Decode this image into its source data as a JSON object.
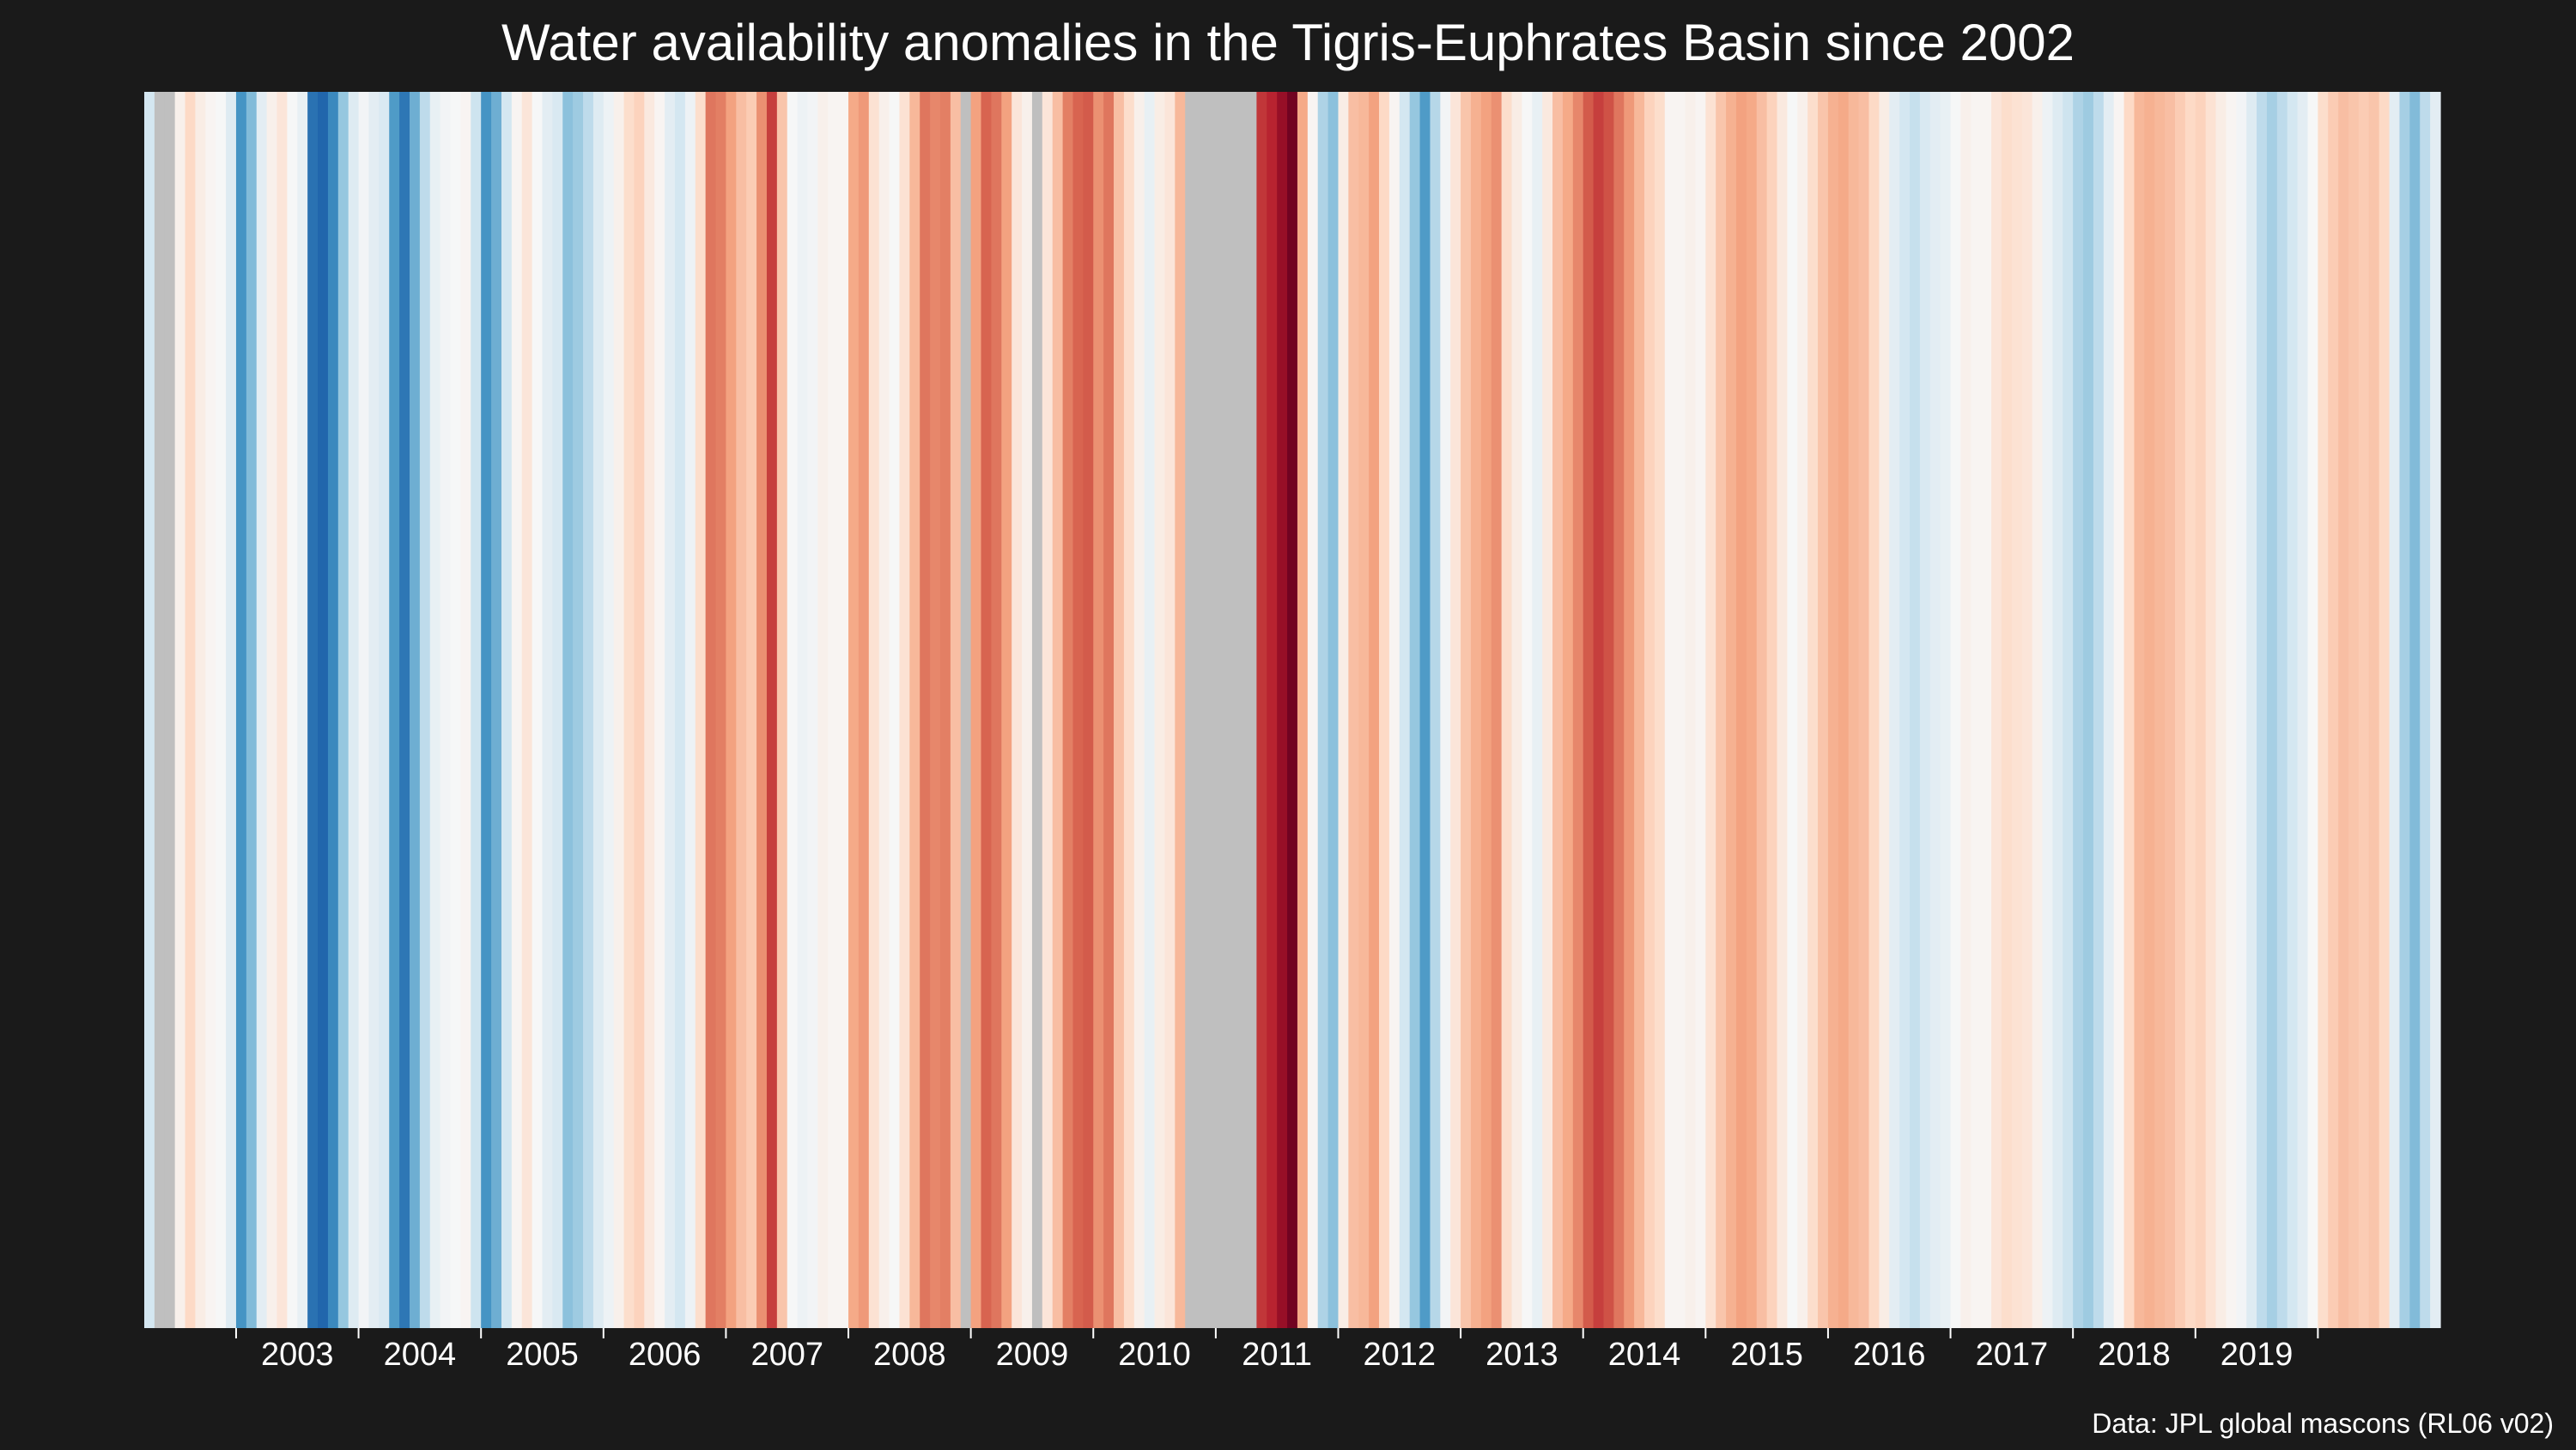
{
  "chart_data": {
    "type": "heatmap",
    "title": "Water availability anomalies in the Tigris-Euphrates Basin since 2002",
    "caption": "Data: JPL global mascons (RL06 v02)",
    "xlabel": "",
    "ylabel": "",
    "x_ticks": [
      "2003",
      "2004",
      "2005",
      "2006",
      "2007",
      "2008",
      "2009",
      "2010",
      "2011",
      "2012",
      "2013",
      "2014",
      "2015",
      "2016",
      "2017",
      "2018",
      "2019"
    ],
    "value_range": [
      -3,
      4
    ],
    "missing_color": "#bfbfbf",
    "colors": {
      "strong_blue": "#2166ac",
      "neutral": "#f7f7f7",
      "strong_red": "#67001f"
    },
    "grid": false,
    "legend": "none",
    "months": [
      [
        "2002-04",
        -0.6
      ],
      [
        "2002-05",
        null
      ],
      [
        "2002-06",
        null
      ],
      [
        "2002-07",
        0.3
      ],
      [
        "2002-08",
        0.9
      ],
      [
        "2002-09",
        0.4
      ],
      [
        "2002-10",
        0.2
      ],
      [
        "2002-11",
        0.1
      ],
      [
        "2002-12",
        -0.4
      ],
      [
        "2003-01",
        -2.2
      ],
      [
        "2003-02",
        -1.6
      ],
      [
        "2003-03",
        -0.3
      ],
      [
        "2003-04",
        0.3
      ],
      [
        "2003-05",
        0.6
      ],
      [
        "2003-06",
        0.1
      ],
      [
        "2003-07",
        -0.2
      ],
      [
        "2003-08",
        -2.8
      ],
      [
        "2003-09",
        -3.0
      ],
      [
        "2003-10",
        -2.4
      ],
      [
        "2003-11",
        -1.4
      ],
      [
        "2003-12",
        -0.4
      ],
      [
        "2004-01",
        0.0
      ],
      [
        "2004-02",
        -0.3
      ],
      [
        "2004-03",
        -0.5
      ],
      [
        "2004-04",
        -2.1
      ],
      [
        "2004-05",
        -2.7
      ],
      [
        "2004-06",
        -1.8
      ],
      [
        "2004-07",
        -0.9
      ],
      [
        "2004-08",
        -0.2
      ],
      [
        "2004-09",
        0.0
      ],
      [
        "2004-10",
        0.1
      ],
      [
        "2004-11",
        0.2
      ],
      [
        "2004-12",
        -0.7
      ],
      [
        "2005-01",
        -2.2
      ],
      [
        "2005-02",
        -1.8
      ],
      [
        "2005-03",
        -0.6
      ],
      [
        "2005-04",
        0.2
      ],
      [
        "2005-05",
        0.6
      ],
      [
        "2005-06",
        0.1
      ],
      [
        "2005-07",
        -0.3
      ],
      [
        "2005-08",
        -0.5
      ],
      [
        "2005-09",
        -1.5
      ],
      [
        "2005-10",
        -1.3
      ],
      [
        "2005-11",
        -0.9
      ],
      [
        "2005-12",
        -0.4
      ],
      [
        "2006-01",
        -0.1
      ],
      [
        "2006-02",
        0.3
      ],
      [
        "2006-03",
        0.8
      ],
      [
        "2006-04",
        1.0
      ],
      [
        "2006-05",
        0.5
      ],
      [
        "2006-06",
        0.2
      ],
      [
        "2006-07",
        -0.3
      ],
      [
        "2006-08",
        -0.6
      ],
      [
        "2006-09",
        -0.1
      ],
      [
        "2006-10",
        0.8
      ],
      [
        "2006-11",
        2.2
      ],
      [
        "2006-12",
        2.1
      ],
      [
        "2007-01",
        1.7
      ],
      [
        "2007-02",
        1.3
      ],
      [
        "2007-03",
        1.1
      ],
      [
        "2007-04",
        1.9
      ],
      [
        "2007-05",
        2.8
      ],
      [
        "2007-06",
        1.2
      ],
      [
        "2007-07",
        0.1
      ],
      [
        "2007-08",
        -0.1
      ],
      [
        "2007-09",
        0.0
      ],
      [
        "2007-10",
        0.3
      ],
      [
        "2007-11",
        0.2
      ],
      [
        "2007-12",
        0.2
      ],
      [
        "2008-01",
        1.6
      ],
      [
        "2008-02",
        1.8
      ],
      [
        "2008-03",
        0.7
      ],
      [
        "2008-04",
        0.3
      ],
      [
        "2008-05",
        0.1
      ],
      [
        "2008-06",
        0.7
      ],
      [
        "2008-07",
        1.4
      ],
      [
        "2008-08",
        2.2
      ],
      [
        "2008-09",
        2.0
      ],
      [
        "2008-10",
        2.1
      ],
      [
        "2008-11",
        1.3
      ],
      [
        "2008-12",
        null
      ],
      [
        "2009-01",
        1.7
      ],
      [
        "2009-02",
        2.4
      ],
      [
        "2009-03",
        2.2
      ],
      [
        "2009-04",
        1.7
      ],
      [
        "2009-05",
        0.6
      ],
      [
        "2009-06",
        0.3
      ],
      [
        "2009-07",
        null
      ],
      [
        "2009-08",
        0.6
      ],
      [
        "2009-09",
        1.3
      ],
      [
        "2009-10",
        2.1
      ],
      [
        "2009-11",
        2.4
      ],
      [
        "2009-12",
        2.5
      ],
      [
        "2010-01",
        1.9
      ],
      [
        "2010-02",
        2.2
      ],
      [
        "2010-03",
        1.3
      ],
      [
        "2010-04",
        0.8
      ],
      [
        "2010-05",
        0.3
      ],
      [
        "2010-06",
        -0.2
      ],
      [
        "2010-07",
        0.4
      ],
      [
        "2010-08",
        0.6
      ],
      [
        "2010-09",
        1.4
      ],
      [
        "2010-10",
        null
      ],
      [
        "2010-11",
        null
      ],
      [
        "2010-12",
        null
      ],
      [
        "2011-01",
        null
      ],
      [
        "2011-02",
        null
      ],
      [
        "2011-03",
        null
      ],
      [
        "2011-04",
        null
      ],
      [
        "2011-05",
        2.9
      ],
      [
        "2011-06",
        3.1
      ],
      [
        "2011-07",
        3.5
      ],
      [
        "2011-08",
        3.9
      ],
      [
        "2011-09",
        1.6
      ],
      [
        "2011-10",
        0.2
      ],
      [
        "2011-11",
        -1.1
      ],
      [
        "2011-12",
        -1.5
      ],
      [
        "2012-01",
        0.4
      ],
      [
        "2012-02",
        1.3
      ],
      [
        "2012-03",
        1.4
      ],
      [
        "2012-04",
        1.7
      ],
      [
        "2012-05",
        0.9
      ],
      [
        "2012-06",
        0.2
      ],
      [
        "2012-07",
        -0.6
      ],
      [
        "2012-08",
        -1.4
      ],
      [
        "2012-09",
        -2.1
      ],
      [
        "2012-10",
        -1.0
      ],
      [
        "2012-11",
        0.0
      ],
      [
        "2012-12",
        0.6
      ],
      [
        "2013-01",
        1.2
      ],
      [
        "2013-02",
        1.5
      ],
      [
        "2013-03",
        1.7
      ],
      [
        "2013-04",
        1.9
      ],
      [
        "2013-05",
        0.8
      ],
      [
        "2013-06",
        0.4
      ],
      [
        "2013-07",
        0.1
      ],
      [
        "2013-08",
        -0.2
      ],
      [
        "2013-09",
        0.5
      ],
      [
        "2013-10",
        1.3
      ],
      [
        "2013-11",
        1.6
      ],
      [
        "2013-12",
        2.0
      ],
      [
        "2014-01",
        2.5
      ],
      [
        "2014-02",
        2.8
      ],
      [
        "2014-03",
        2.6
      ],
      [
        "2014-04",
        2.2
      ],
      [
        "2014-05",
        1.8
      ],
      [
        "2014-06",
        1.4
      ],
      [
        "2014-07",
        1.0
      ],
      [
        "2014-08",
        0.8
      ],
      [
        "2014-09",
        0.2
      ],
      [
        "2014-10",
        0.2
      ],
      [
        "2014-11",
        0.3
      ],
      [
        "2014-12",
        0.2
      ],
      [
        "2015-01",
        0.7
      ],
      [
        "2015-02",
        1.2
      ],
      [
        "2015-03",
        1.5
      ],
      [
        "2015-04",
        1.7
      ],
      [
        "2015-05",
        1.6
      ],
      [
        "2015-06",
        1.3
      ],
      [
        "2015-07",
        1.0
      ],
      [
        "2015-08",
        0.5
      ],
      [
        "2015-09",
        0.1
      ],
      [
        "2015-10",
        0.3
      ],
      [
        "2015-11",
        0.8
      ],
      [
        "2015-12",
        1.2
      ],
      [
        "2016-01",
        1.5
      ],
      [
        "2016-02",
        1.6
      ],
      [
        "2016-03",
        1.4
      ],
      [
        "2016-04",
        1.3
      ],
      [
        "2016-05",
        0.9
      ],
      [
        "2016-06",
        0.4
      ],
      [
        "2016-07",
        -0.3
      ],
      [
        "2016-08",
        -0.6
      ],
      [
        "2016-09",
        -0.8
      ],
      [
        "2016-10",
        -0.5
      ],
      [
        "2016-11",
        -0.3
      ],
      [
        "2016-12",
        -0.2
      ],
      [
        "2017-01",
        0.1
      ],
      [
        "2017-02",
        0.3
      ],
      [
        "2017-03",
        0.2
      ],
      [
        "2017-04",
        0.2
      ],
      [
        "2017-05",
        0.6
      ],
      [
        "2017-06",
        0.8
      ],
      [
        "2017-07",
        0.7
      ],
      [
        "2017-08",
        0.6
      ],
      [
        "2017-09",
        0.3
      ],
      [
        "2017-10",
        -0.1
      ],
      [
        "2017-11",
        -0.4
      ],
      [
        "2017-12",
        -0.7
      ],
      [
        "2018-01",
        -1.1
      ],
      [
        "2018-02",
        -1.3
      ],
      [
        "2018-03",
        -0.9
      ],
      [
        "2018-04",
        -0.3
      ],
      [
        "2018-05",
        0.2
      ],
      [
        "2018-06",
        0.9
      ],
      [
        "2018-07",
        1.4
      ],
      [
        "2018-08",
        1.5
      ],
      [
        "2018-09",
        1.4
      ],
      [
        "2018-10",
        1.3
      ],
      [
        "2018-11",
        1.1
      ],
      [
        "2018-12",
        0.9
      ],
      [
        "2019-01",
        1.0
      ],
      [
        "2019-02",
        0.7
      ],
      [
        "2019-03",
        0.4
      ],
      [
        "2019-04",
        0.2
      ],
      [
        "2019-05",
        0.0
      ],
      [
        "2019-06",
        -0.4
      ],
      [
        "2019-07",
        -0.9
      ],
      [
        "2019-08",
        -1.2
      ],
      [
        "2019-09",
        -0.9
      ],
      [
        "2019-10",
        -0.6
      ],
      [
        "2019-11",
        -0.3
      ],
      [
        "2019-12",
        0.1
      ],
      [
        "2020-01",
        0.8
      ],
      [
        "2020-02",
        1.1
      ],
      [
        "2020-03",
        1.3
      ],
      [
        "2020-04",
        1.2
      ],
      [
        "2020-05",
        1.1
      ],
      [
        "2020-06",
        1.2
      ],
      [
        "2020-07",
        0.9
      ],
      [
        "2020-08",
        -0.3
      ],
      [
        "2020-09",
        -1.2
      ],
      [
        "2020-10",
        -1.6
      ],
      [
        "2020-11",
        -0.9
      ],
      [
        "2020-12",
        -0.3
      ]
    ]
  }
}
